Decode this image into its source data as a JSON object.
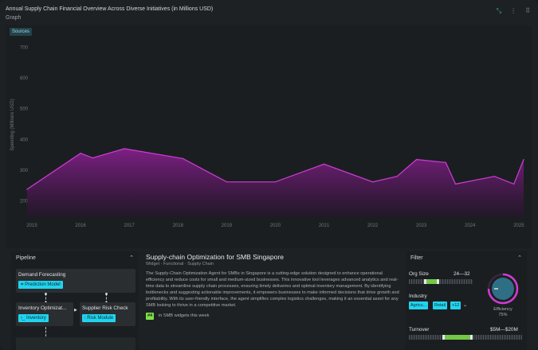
{
  "header": {
    "title": "Annual Supply Chain Financial Overview Across Diverse Initiatives (in Millions USD)",
    "subtitle": "Graph",
    "icons": [
      "collapse-icon",
      "more-vertical-icon",
      "drag-handle-icon"
    ]
  },
  "chart": {
    "sources_label": "Sources"
  },
  "chart_data": {
    "type": "area",
    "title": "Annual Supply Chain Financial Overview Across Diverse Initiatives (in Millions USD)",
    "xlabel": "",
    "ylabel": "Spending (Millions USD)",
    "ylim": [
      150,
      750
    ],
    "yticks": [
      200,
      300,
      400,
      500,
      600,
      700
    ],
    "xlim": [
      2015,
      2025.1
    ],
    "xticks": [
      "2015",
      "2016",
      "2017",
      "2018",
      "2019",
      "2020",
      "2021",
      "2022",
      "2023",
      "2024",
      "2025"
    ],
    "series": [
      {
        "name": "",
        "color": "#d03cd6",
        "points": [
          [
            2014.9,
            238
          ],
          [
            2016.0,
            355
          ],
          [
            2016.25,
            340
          ],
          [
            2016.9,
            370
          ],
          [
            2018.1,
            338
          ],
          [
            2019.0,
            262
          ],
          [
            2020.0,
            262
          ],
          [
            2021.0,
            320
          ],
          [
            2022.0,
            262
          ],
          [
            2022.5,
            280
          ],
          [
            2022.9,
            335
          ],
          [
            2023.5,
            325
          ],
          [
            2023.7,
            255
          ],
          [
            2024.5,
            280
          ],
          [
            2024.9,
            255
          ],
          [
            2025.1,
            335
          ]
        ]
      }
    ],
    "grid": false,
    "legend": "none"
  },
  "pipeline": {
    "title": "Pipeline",
    "nodes": [
      {
        "title": "Demand Forecasting",
        "tag": "Prediction Model",
        "tag_icon": "model-icon"
      },
      {
        "title": "Inventory Optimizat...",
        "tag": "Inventory",
        "tag_icon": "terminal-icon"
      },
      {
        "title": "Supplier Risk Check",
        "tag": "Risk Module",
        "tag_icon": "sliders-icon"
      }
    ]
  },
  "detail": {
    "title": "Supply-chain Optimization for SMB Singapore",
    "crumbs": "Widget · Functional · Supply Chain",
    "description": "The Supply-Chain Optimization Agent for SMBs in Singapore is a cutting-edge solution designed to enhance operational efficiency and reduce costs for small and medium-sized businesses. This innovative tool leverages advanced analytics and real-time data to streamline supply chain processes, ensuring timely deliveries and optimal inventory management. By identifying bottlenecks and suggesting actionable improvements, it empowers businesses to make informed decisions that drive growth and profitability. With its user-friendly interface, the agent simplifies complex logistics challenges, making it an essential asset for any SMB looking to thrive in a competitive market.",
    "rank_badge": "#4",
    "rank_text": "in SMB widgets this week"
  },
  "filter": {
    "title": "Filter",
    "org_size_label": "Org Size",
    "org_size_value": "24—32",
    "org_size_range": [
      0.25,
      0.45
    ],
    "industry_label": "Industry",
    "industry_chips": [
      "Agricu...",
      "Retail",
      "+12"
    ],
    "turnover_label": "Turnover",
    "turnover_value": "$5M—$20M",
    "turnover_range": [
      0.3,
      0.55
    ],
    "efficiency_label": "Efficiency",
    "efficiency_value": "75%",
    "efficiency_fraction": 0.75,
    "accent_color": "#d03cd6",
    "knob_color": "#2f6f86"
  }
}
